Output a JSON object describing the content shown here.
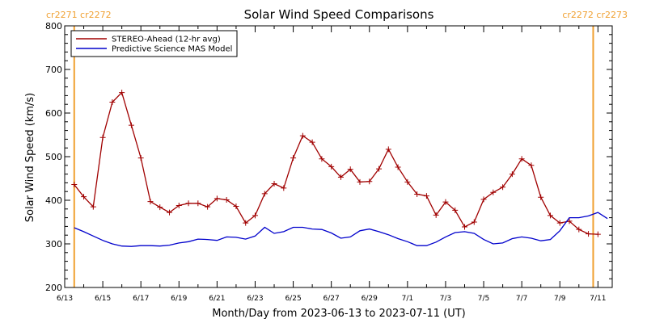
{
  "chart_data": {
    "type": "line",
    "title": "Solar Wind Speed Comparisons",
    "xlabel": "Month/Day from 2023-06-13 to 2023-07-11 (UT)",
    "ylabel": "Solar Wind Speed (km/s)",
    "ylim": [
      200,
      800
    ],
    "yticks": [
      200,
      300,
      400,
      500,
      600,
      700,
      800
    ],
    "xlim": [
      "2023-06-13",
      "2023-07-11T18:00"
    ],
    "xticks": [
      {
        "x": "2023-06-13",
        "label": "6/13"
      },
      {
        "x": "2023-06-15",
        "label": "6/15"
      },
      {
        "x": "2023-06-17",
        "label": "6/17"
      },
      {
        "x": "2023-06-19",
        "label": "6/19"
      },
      {
        "x": "2023-06-21",
        "label": "6/21"
      },
      {
        "x": "2023-06-23",
        "label": "6/23"
      },
      {
        "x": "2023-06-25",
        "label": "6/25"
      },
      {
        "x": "2023-06-27",
        "label": "6/27"
      },
      {
        "x": "2023-06-29",
        "label": "6/29"
      },
      {
        "x": "2023-07-01",
        "label": "7/1"
      },
      {
        "x": "2023-07-03",
        "label": "7/3"
      },
      {
        "x": "2023-07-05",
        "label": "7/5"
      },
      {
        "x": "2023-07-07",
        "label": "7/7"
      },
      {
        "x": "2023-07-09",
        "label": "7/9"
      },
      {
        "x": "2023-07-11",
        "label": "7/11"
      }
    ],
    "legend_position": "top-left",
    "grid": false,
    "carrington_markers": [
      {
        "x": "2023-06-13T12:00",
        "label": "cr2271 cr2272",
        "label_side": "left"
      },
      {
        "x": "2023-07-10T18:00",
        "label": "cr2272 cr2273",
        "label_side": "right"
      }
    ],
    "series": [
      {
        "name": "STEREO-Ahead (12-hr avg)",
        "color": "#a00000",
        "markers": "plus",
        "points": [
          [
            "2023-06-13T12:00",
            436
          ],
          [
            "2023-06-14T00:00",
            408
          ],
          [
            "2023-06-14T12:00",
            385
          ],
          [
            "2023-06-15T00:00",
            544
          ],
          [
            "2023-06-15T12:00",
            625
          ],
          [
            "2023-06-16T00:00",
            647
          ],
          [
            "2023-06-16T12:00",
            572
          ],
          [
            "2023-06-17T00:00",
            497
          ],
          [
            "2023-06-17T12:00",
            397
          ],
          [
            "2023-06-18T00:00",
            384
          ],
          [
            "2023-06-18T12:00",
            372
          ],
          [
            "2023-06-19T00:00",
            388
          ],
          [
            "2023-06-19T12:00",
            393
          ],
          [
            "2023-06-20T00:00",
            393
          ],
          [
            "2023-06-20T12:00",
            385
          ],
          [
            "2023-06-21T00:00",
            404
          ],
          [
            "2023-06-21T12:00",
            401
          ],
          [
            "2023-06-22T00:00",
            386
          ],
          [
            "2023-06-22T12:00",
            348
          ],
          [
            "2023-06-23T00:00",
            365
          ],
          [
            "2023-06-23T12:00",
            415
          ],
          [
            "2023-06-24T00:00",
            438
          ],
          [
            "2023-06-24T12:00",
            428
          ],
          [
            "2023-06-25T00:00",
            497
          ],
          [
            "2023-06-25T12:00",
            548
          ],
          [
            "2023-06-26T00:00",
            533
          ],
          [
            "2023-06-26T12:00",
            495
          ],
          [
            "2023-06-27T00:00",
            477
          ],
          [
            "2023-06-27T12:00",
            453
          ],
          [
            "2023-06-28T00:00",
            471
          ],
          [
            "2023-06-28T12:00",
            442
          ],
          [
            "2023-06-29T00:00",
            443
          ],
          [
            "2023-06-29T12:00",
            472
          ],
          [
            "2023-06-30T00:00",
            517
          ],
          [
            "2023-06-30T12:00",
            476
          ],
          [
            "2023-07-01T00:00",
            442
          ],
          [
            "2023-07-01T12:00",
            414
          ],
          [
            "2023-07-02T00:00",
            410
          ],
          [
            "2023-07-02T12:00",
            366
          ],
          [
            "2023-07-03T00:00",
            396
          ],
          [
            "2023-07-03T12:00",
            377
          ],
          [
            "2023-07-04T00:00",
            339
          ],
          [
            "2023-07-04T12:00",
            350
          ],
          [
            "2023-07-05T00:00",
            402
          ],
          [
            "2023-07-05T12:00",
            418
          ],
          [
            "2023-07-06T00:00",
            430
          ],
          [
            "2023-07-06T12:00",
            460
          ],
          [
            "2023-07-07T00:00",
            495
          ],
          [
            "2023-07-07T12:00",
            480
          ],
          [
            "2023-07-08T00:00",
            407
          ],
          [
            "2023-07-08T12:00",
            365
          ],
          [
            "2023-07-09T00:00",
            348
          ],
          [
            "2023-07-09T12:00",
            352
          ],
          [
            "2023-07-10T00:00",
            333
          ],
          [
            "2023-07-10T12:00",
            323
          ],
          [
            "2023-07-11T00:00",
            322
          ]
        ]
      },
      {
        "name": "Predictive Science MAS Model",
        "color": "#0000cc",
        "markers": "none",
        "points": [
          [
            "2023-06-13T12:00",
            337
          ],
          [
            "2023-06-14T00:00",
            328
          ],
          [
            "2023-06-14T12:00",
            318
          ],
          [
            "2023-06-15T00:00",
            308
          ],
          [
            "2023-06-15T12:00",
            300
          ],
          [
            "2023-06-16T00:00",
            295
          ],
          [
            "2023-06-16T12:00",
            294
          ],
          [
            "2023-06-17T00:00",
            296
          ],
          [
            "2023-06-17T12:00",
            296
          ],
          [
            "2023-06-18T00:00",
            295
          ],
          [
            "2023-06-18T12:00",
            297
          ],
          [
            "2023-06-19T00:00",
            302
          ],
          [
            "2023-06-19T12:00",
            305
          ],
          [
            "2023-06-20T00:00",
            311
          ],
          [
            "2023-06-20T12:00",
            310
          ],
          [
            "2023-06-21T00:00",
            308
          ],
          [
            "2023-06-21T12:00",
            316
          ],
          [
            "2023-06-22T00:00",
            315
          ],
          [
            "2023-06-22T12:00",
            311
          ],
          [
            "2023-06-23T00:00",
            318
          ],
          [
            "2023-06-23T12:00",
            338
          ],
          [
            "2023-06-24T00:00",
            324
          ],
          [
            "2023-06-24T12:00",
            328
          ],
          [
            "2023-06-25T00:00",
            338
          ],
          [
            "2023-06-25T12:00",
            338
          ],
          [
            "2023-06-26T00:00",
            334
          ],
          [
            "2023-06-26T12:00",
            333
          ],
          [
            "2023-06-27T00:00",
            325
          ],
          [
            "2023-06-27T12:00",
            313
          ],
          [
            "2023-06-28T00:00",
            316
          ],
          [
            "2023-06-28T12:00",
            330
          ],
          [
            "2023-06-29T00:00",
            334
          ],
          [
            "2023-06-29T12:00",
            328
          ],
          [
            "2023-06-30T00:00",
            321
          ],
          [
            "2023-06-30T12:00",
            312
          ],
          [
            "2023-07-01T00:00",
            305
          ],
          [
            "2023-07-01T12:00",
            296
          ],
          [
            "2023-07-02T00:00",
            296
          ],
          [
            "2023-07-02T12:00",
            304
          ],
          [
            "2023-07-03T00:00",
            316
          ],
          [
            "2023-07-03T12:00",
            326
          ],
          [
            "2023-07-04T00:00",
            328
          ],
          [
            "2023-07-04T12:00",
            324
          ],
          [
            "2023-07-05T00:00",
            310
          ],
          [
            "2023-07-05T12:00",
            300
          ],
          [
            "2023-07-06T00:00",
            302
          ],
          [
            "2023-07-06T12:00",
            312
          ],
          [
            "2023-07-07T00:00",
            316
          ],
          [
            "2023-07-07T12:00",
            313
          ],
          [
            "2023-07-08T00:00",
            307
          ],
          [
            "2023-07-08T12:00",
            310
          ],
          [
            "2023-07-09T00:00",
            330
          ],
          [
            "2023-07-09T12:00",
            360
          ],
          [
            "2023-07-10T00:00",
            360
          ],
          [
            "2023-07-10T12:00",
            364
          ],
          [
            "2023-07-11T00:00",
            372
          ],
          [
            "2023-07-11T12:00",
            358
          ]
        ]
      }
    ]
  }
}
